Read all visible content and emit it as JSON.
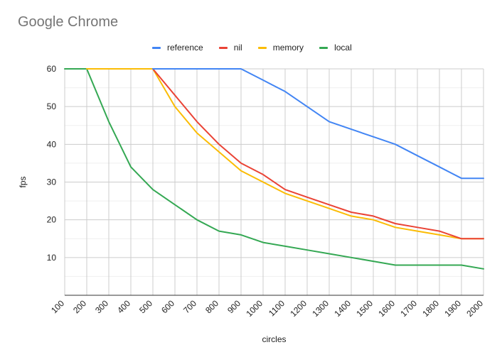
{
  "chart_data": {
    "type": "line",
    "title": "Google Chrome",
    "xlabel": "circles",
    "ylabel": "fps",
    "x": [
      100,
      200,
      300,
      400,
      500,
      600,
      700,
      800,
      900,
      1000,
      1100,
      1200,
      1300,
      1400,
      1500,
      1600,
      1700,
      1800,
      1900,
      2000
    ],
    "ylim": [
      0,
      60
    ],
    "yticks": [
      10,
      20,
      30,
      40,
      50,
      60
    ],
    "grid": true,
    "legend_position": "top",
    "series": [
      {
        "name": "reference",
        "color": "#4285f4",
        "values": [
          null,
          null,
          null,
          null,
          60,
          60,
          60,
          60,
          60,
          57,
          54,
          50,
          46,
          44,
          42,
          40,
          37,
          34,
          31,
          31
        ]
      },
      {
        "name": "nil",
        "color": "#ea4335",
        "values": [
          null,
          null,
          null,
          null,
          60,
          53,
          46,
          40,
          35,
          32,
          28,
          26,
          24,
          22,
          21,
          19,
          18,
          17,
          15,
          15
        ]
      },
      {
        "name": "memory",
        "color": "#fbbc04",
        "values": [
          null,
          60,
          60,
          60,
          60,
          50,
          43,
          38,
          33,
          30,
          27,
          25,
          23,
          21,
          20,
          18,
          17,
          16,
          15,
          15
        ]
      },
      {
        "name": "local",
        "color": "#34a853",
        "values": [
          60,
          60,
          46,
          34,
          28,
          24,
          20,
          17,
          16,
          14,
          13,
          12,
          11,
          10,
          9,
          8,
          8,
          8,
          8,
          7
        ]
      }
    ]
  }
}
